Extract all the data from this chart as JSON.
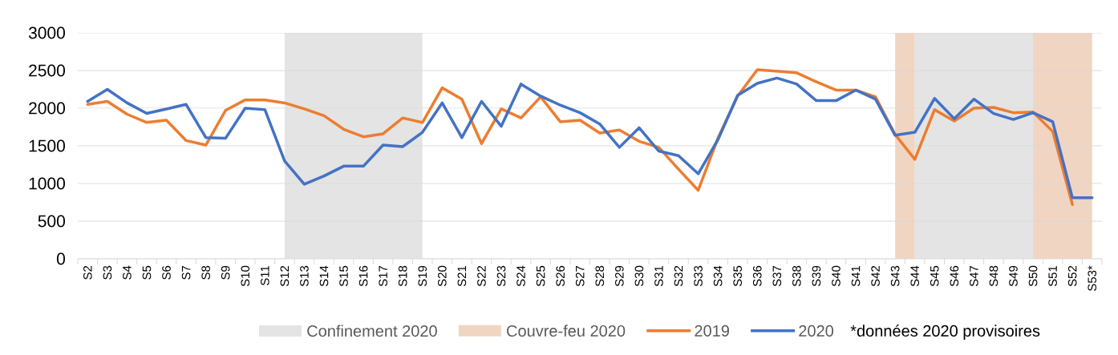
{
  "chart_data": {
    "type": "line",
    "categories": [
      "S2",
      "S3",
      "S4",
      "S5",
      "S6",
      "S7",
      "S8",
      "S9",
      "S10",
      "S11",
      "S12",
      "S13",
      "S14",
      "S15",
      "S16",
      "S17",
      "S18",
      "S19",
      "S20",
      "S21",
      "S22",
      "S23",
      "S24",
      "S25",
      "S26",
      "S27",
      "S28",
      "S29",
      "S30",
      "S31",
      "S32",
      "S33",
      "S34",
      "S35",
      "S36",
      "S37",
      "S38",
      "S39",
      "S40",
      "S41",
      "S42",
      "S43",
      "S44",
      "S45",
      "S46",
      "S47",
      "S48",
      "S49",
      "S50",
      "S51",
      "S52",
      "S53*"
    ],
    "series": [
      {
        "name": "2019",
        "color": "#ed7d31",
        "values": [
          2050,
          2090,
          1920,
          1810,
          1840,
          1570,
          1510,
          1970,
          2110,
          2110,
          2070,
          1990,
          1900,
          1720,
          1620,
          1660,
          1870,
          1810,
          2270,
          2120,
          1530,
          1990,
          1870,
          2150,
          1820,
          1840,
          1670,
          1710,
          1560,
          1480,
          1190,
          910,
          1600,
          2160,
          2510,
          2490,
          2470,
          2350,
          2240,
          2240,
          2150,
          1650,
          1320,
          1980,
          1830,
          2000,
          2010,
          1940,
          1950,
          1690,
          720,
          null
        ]
      },
      {
        "name": "2020",
        "color": "#4472c4",
        "values": [
          2090,
          2250,
          2070,
          1930,
          1990,
          2050,
          1610,
          1600,
          2000,
          1980,
          1300,
          990,
          1100,
          1230,
          1230,
          1510,
          1490,
          1680,
          2070,
          1610,
          2090,
          1760,
          2320,
          2160,
          2040,
          1940,
          1790,
          1480,
          1740,
          1430,
          1370,
          1130,
          1580,
          2170,
          2330,
          2400,
          2320,
          2100,
          2100,
          2240,
          2120,
          1640,
          1680,
          2130,
          1860,
          2120,
          1930,
          1850,
          1940,
          1820,
          810,
          810
        ]
      }
    ],
    "ylim": [
      0,
      3000
    ],
    "yticks": [
      0,
      500,
      1000,
      1500,
      2000,
      2500,
      3000
    ],
    "grid": "y",
    "legend": "bottom",
    "bands": [
      {
        "axis": "x",
        "from": "S12",
        "to": "S19",
        "label": "Confinement 2020",
        "color": "#e4e4e4"
      },
      {
        "axis": "x",
        "from": "S43",
        "to": "S44",
        "label": "Couvre-feu 2020",
        "color": "#f0d5c3"
      },
      {
        "axis": "x",
        "from": "S44",
        "to": "S50",
        "color": "#e4e4e4"
      },
      {
        "axis": "x",
        "from": "S50",
        "to": "S53*",
        "color": "#f0d5c3"
      }
    ],
    "annotations": [
      "*données 2020 provisoires"
    ]
  }
}
